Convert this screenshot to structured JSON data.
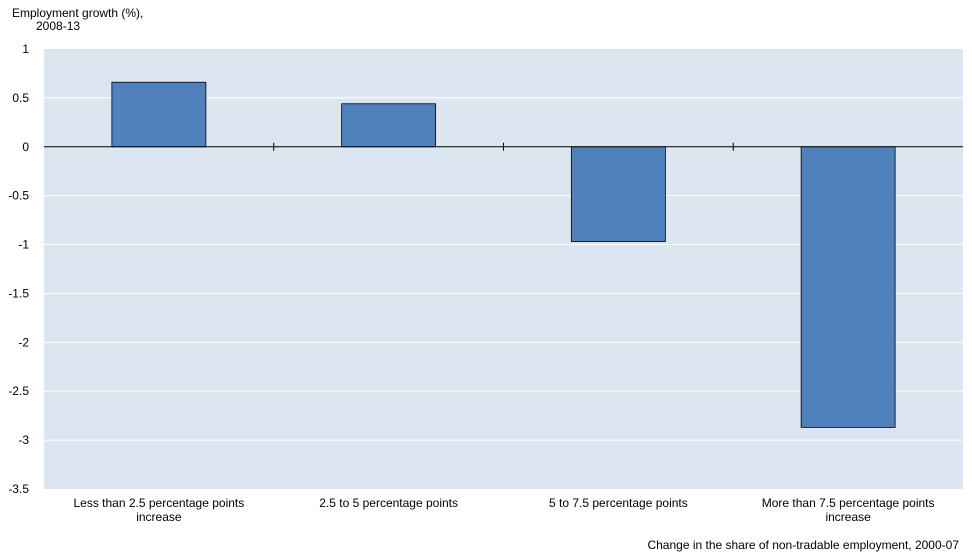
{
  "chart_data": {
    "type": "bar",
    "ylabel_lines": [
      "Employment growth (%),",
      "2008-13"
    ],
    "xlabel": "Change in the share of non-tradable employment, 2000-07",
    "categories": [
      [
        "Less than 2.5 percentage points",
        "increase"
      ],
      [
        "2.5 to 5 percentage points"
      ],
      [
        "5 to 7.5 percentage points"
      ],
      [
        "More than 7.5 percentage points",
        "increase"
      ]
    ],
    "values": [
      0.66,
      0.44,
      -0.97,
      -2.87
    ],
    "ylim": [
      -3.5,
      1
    ],
    "yticks": [
      1,
      0.5,
      0,
      -0.5,
      -1,
      -1.5,
      -2,
      -2.5,
      -3,
      -3.5
    ],
    "ytick_labels": [
      "1",
      "0.5",
      "0",
      "-0.5",
      "-1",
      "-1.5",
      "-2",
      "-2.5",
      "-3",
      "-3.5"
    ],
    "colors": {
      "plot_background": "#dce6f1",
      "bar_fill": "#4f81bd",
      "bar_stroke": "#000000",
      "gridline": "#ffffff"
    },
    "grid": true,
    "legend": "none"
  }
}
